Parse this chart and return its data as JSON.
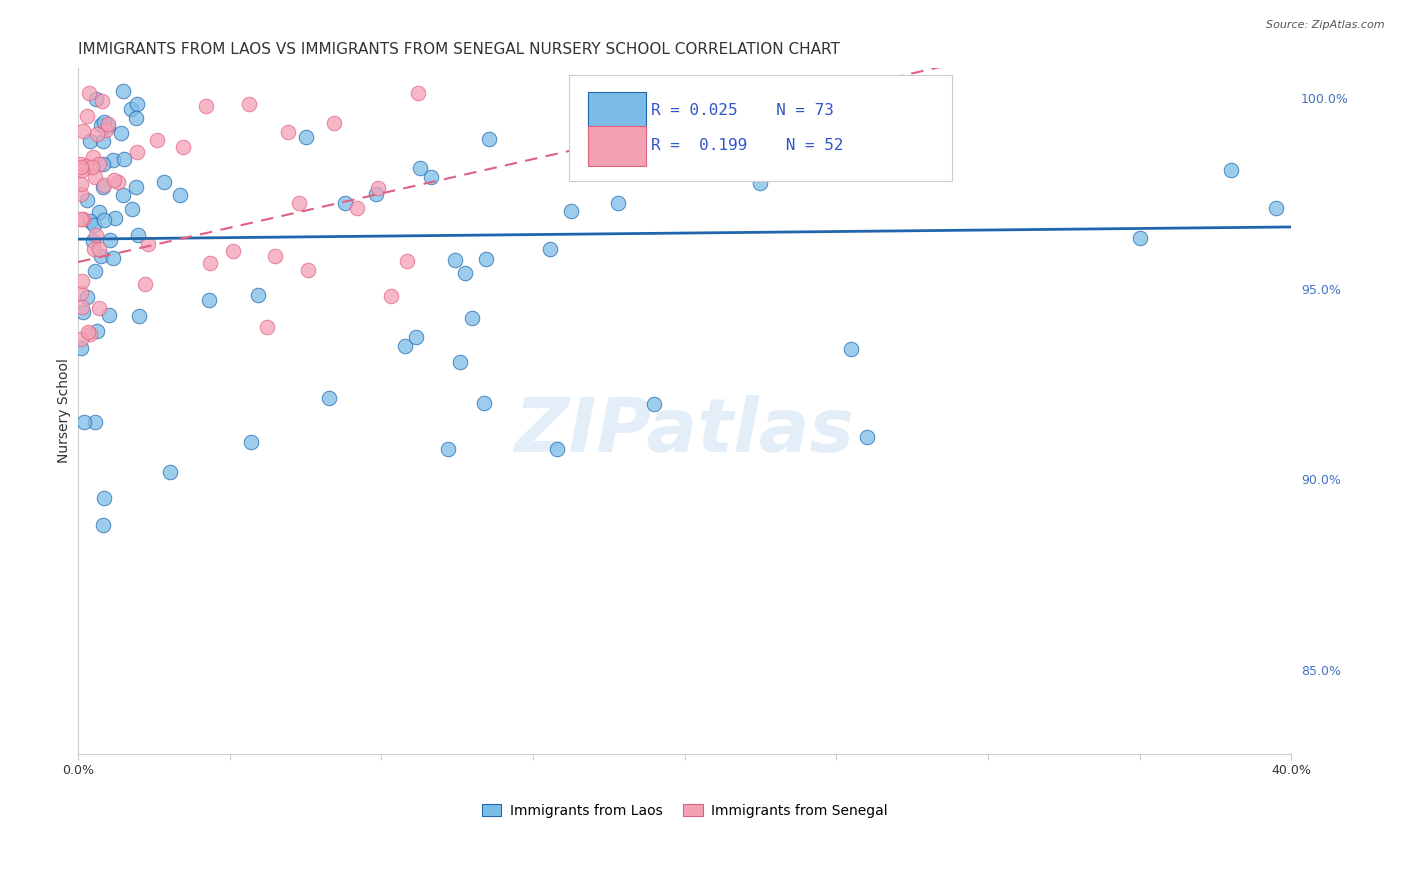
{
  "title": "IMMIGRANTS FROM LAOS VS IMMIGRANTS FROM SENEGAL NURSERY SCHOOL CORRELATION CHART",
  "source": "Source: ZipAtlas.com",
  "ylabel": "Nursery School",
  "xlim": [
    0.0,
    0.4
  ],
  "ylim": [
    0.828,
    1.008
  ],
  "y_ticks_right": [
    0.85,
    0.9,
    0.95,
    1.0
  ],
  "y_tick_labels_right": [
    "85.0%",
    "90.0%",
    "95.0%",
    "100.0%"
  ],
  "color_laos": "#7bbde8",
  "color_senegal": "#f4a0b5",
  "trendline_laos_color": "#2166ac",
  "trendline_senegal_color": "#e06080",
  "R_laos": 0.025,
  "N_laos": 73,
  "R_senegal": 0.199,
  "N_senegal": 52,
  "watermark": "ZIPatlas",
  "background_color": "#ffffff",
  "grid_color": "#dddddd",
  "title_fontsize": 11,
  "axis_label_fontsize": 10,
  "tick_fontsize": 9,
  "legend_fontsize": 10
}
